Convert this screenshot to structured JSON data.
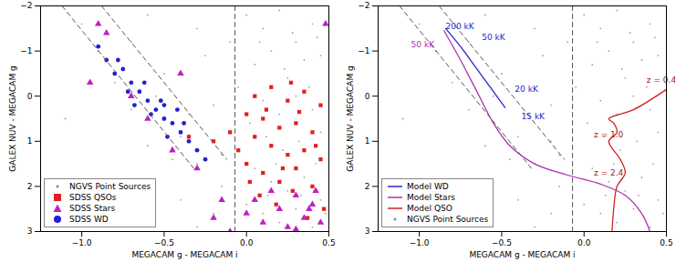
{
  "chart_data": [
    {
      "type": "scatter",
      "xlabel": "MEGACAM g - MEGACAM i",
      "ylabel": "GALEX NUV - MEGACAM g",
      "xlim": [
        -1.25,
        0.5
      ],
      "ylim": [
        3,
        -2
      ],
      "xticks": [
        {
          "value": -1.0,
          "label": "−1.0"
        },
        {
          "value": -0.5,
          "label": "−0.5"
        },
        {
          "value": 0.0,
          "label": "0.0"
        },
        {
          "value": 0.5,
          "label": "0.5"
        }
      ],
      "yticks": [
        {
          "value": -2,
          "label": "−2"
        },
        {
          "value": -1,
          "label": "−1"
        },
        0,
        1,
        2,
        3
      ],
      "grid": false,
      "legend": "lower left",
      "reference_lines": [
        {
          "x": [
            -1.12,
            -0.32
          ],
          "y": [
            -2,
            1.6
          ],
          "line_style": "dashed",
          "color": "#555555"
        },
        {
          "x": [
            -0.88,
            -0.12
          ],
          "y": [
            -2,
            1.4
          ],
          "line_style": "dashed",
          "color": "#555555"
        },
        {
          "x": [
            -0.07,
            -0.07
          ],
          "y": [
            -2,
            3
          ],
          "line_style": "dashed",
          "color": "#555555"
        }
      ],
      "series": [
        {
          "name": "NGVS Point Sources",
          "color": "#888888",
          "marker": "point",
          "x": [
            0.0,
            0.1,
            0.2,
            0.3,
            0.4,
            0.45,
            0.05,
            0.15,
            0.25,
            0.35,
            -0.05,
            0.1,
            0.2,
            0.3,
            0.4,
            0.45,
            0.02,
            0.12,
            0.22,
            0.32,
            0.42,
            0.05,
            0.15,
            0.25,
            0.35,
            0.45,
            0.0,
            0.1,
            0.2,
            0.3,
            0.4,
            0.48,
            0.08,
            0.28,
            0.38,
            0.18,
            0.33,
            0.43,
            0.13,
            0.23,
            -0.3,
            -0.6,
            -0.9,
            -0.5,
            -0.2,
            -0.7,
            -0.4,
            -0.15,
            -0.25,
            -1.0,
            -0.8,
            -0.35,
            -0.6,
            -0.2,
            -0.45,
            -0.1,
            -0.7,
            -0.3,
            -1.1,
            -0.55,
            -0.4,
            -0.2,
            -0.3,
            -0.15
          ],
          "y": [
            -1.8,
            -1.5,
            -1.9,
            -1.2,
            -1.6,
            -0.9,
            -0.7,
            -1.0,
            -0.4,
            -0.8,
            -0.2,
            0.1,
            0.4,
            0.0,
            0.3,
            0.8,
            0.6,
            0.9,
            1.2,
            1.0,
            1.5,
            1.6,
            1.9,
            2.1,
            1.8,
            2.3,
            2.4,
            2.6,
            2.8,
            2.5,
            2.9,
            2.6,
            -1.2,
            -1.4,
            -0.2,
            1.5,
            2.2,
            -1.3,
            2.2,
            -0.6,
            -1.5,
            -1.8,
            -1.0,
            -0.5,
            0.2,
            0.3,
            0.9,
            1.3,
            -0.9,
            -1.6,
            -0.3,
            0.4,
            1.1,
            1.0,
            1.4,
            -1.2,
            -1.2,
            1.5,
            0.5,
            0.0,
            2.3,
            2.6,
            2.9,
            2.0
          ]
        },
        {
          "name": "SDSS QSOs",
          "color": "#e02020",
          "marker": "square",
          "x": [
            0.05,
            0.15,
            0.25,
            0.35,
            0.45,
            0.0,
            0.1,
            0.2,
            0.3,
            0.4,
            0.05,
            0.15,
            0.25,
            0.35,
            0.45,
            0.0,
            0.1,
            0.2,
            0.3,
            0.4,
            0.08,
            0.18,
            0.28,
            -0.05,
            -0.1,
            0.12,
            0.32,
            0.22,
            0.42,
            0.02,
            -0.2,
            -0.35,
            0.27,
            0.47,
            0.37
          ],
          "y": [
            0.0,
            -0.2,
            0.1,
            -0.1,
            0.2,
            0.4,
            0.5,
            0.7,
            0.6,
            0.8,
            0.9,
            1.1,
            1.3,
            1.2,
            1.4,
            1.5,
            1.7,
            1.9,
            1.6,
            2.0,
            2.2,
            2.4,
            2.1,
            1.2,
            0.8,
            0.3,
            0.35,
            1.6,
            1.1,
            1.9,
            1.0,
            0.9,
            -0.3,
            2.5,
            2.7
          ]
        },
        {
          "name": "SDSS Stars",
          "color": "#c020c0",
          "marker": "triangle",
          "x": [
            -0.85,
            -0.95,
            -0.7,
            -0.6,
            -0.45,
            -0.3,
            -0.15,
            0.0,
            0.1,
            0.2,
            0.25,
            0.3,
            0.35,
            0.4,
            0.45,
            0.42,
            0.3,
            0.38,
            0.15,
            0.48,
            -0.2,
            -0.1,
            0.05,
            -0.4,
            -0.9
          ],
          "y": [
            -1.4,
            -0.3,
            0.0,
            0.5,
            1.2,
            1.6,
            2.3,
            2.6,
            2.8,
            2.5,
            2.9,
            2.2,
            2.7,
            2.4,
            2.8,
            2.1,
            2.95,
            2.5,
            2.1,
            -1.6,
            2.7,
            3.0,
            2.3,
            -0.5,
            -1.6
          ]
        },
        {
          "name": "SDSS WD",
          "color": "#2020d0",
          "marker": "circle",
          "x": [
            -0.85,
            -0.8,
            -0.75,
            -0.7,
            -0.65,
            -0.6,
            -0.55,
            -0.5,
            -0.45,
            -0.4,
            -0.35,
            -0.3,
            -0.72,
            -0.62,
            -0.52,
            -0.42,
            -0.78,
            -0.58,
            -0.48,
            -0.38,
            -0.9,
            -0.68,
            -0.25,
            -0.5
          ],
          "y": [
            -0.8,
            -0.5,
            -0.6,
            -0.3,
            -0.1,
            0.1,
            0.3,
            0.5,
            0.6,
            0.8,
            1.0,
            1.2,
            -0.1,
            -0.3,
            0.1,
            0.3,
            -0.8,
            0.4,
            0.9,
            0.6,
            -1.1,
            0.2,
            1.4,
            0.2
          ]
        }
      ]
    },
    {
      "type": "scatter",
      "xlabel": "MEGACAM g - MEGACAM i",
      "ylabel": "GALEX NUV - MEGACAM g",
      "xlim": [
        -1.25,
        0.5
      ],
      "ylim": [
        3,
        -2
      ],
      "xticks": [
        {
          "value": -1.0,
          "label": "−1.0"
        },
        {
          "value": -0.5,
          "label": "−0.5"
        },
        {
          "value": 0.0,
          "label": "0.0"
        },
        {
          "value": 0.5,
          "label": "0.5"
        }
      ],
      "yticks": [
        {
          "value": -2,
          "label": "−2"
        },
        {
          "value": -1,
          "label": "−1"
        },
        0,
        1,
        2,
        3
      ],
      "grid": false,
      "legend": "lower left",
      "reference_lines": [
        {
          "x": [
            -1.12,
            -0.32
          ],
          "y": [
            -2,
            1.6
          ],
          "line_style": "dashed",
          "color": "#555555"
        },
        {
          "x": [
            -0.88,
            -0.12
          ],
          "y": [
            -2,
            1.4
          ],
          "line_style": "dashed",
          "color": "#555555"
        },
        {
          "x": [
            -0.07,
            -0.07
          ],
          "y": [
            -2,
            3
          ],
          "line_style": "dashed",
          "color": "#555555"
        }
      ],
      "series": [
        {
          "name": "Model WD",
          "type": "line",
          "color": "#2828c8",
          "line_style": "solid",
          "x": [
            -0.84,
            -0.75,
            -0.65,
            -0.55,
            -0.48
          ],
          "y": [
            -1.5,
            -1.1,
            -0.6,
            -0.1,
            0.25
          ]
        },
        {
          "name": "Model Stars",
          "type": "line",
          "color": "#b030b0",
          "line_style": "solid",
          "x": [
            -0.85,
            -0.75,
            -0.65,
            -0.55,
            -0.45,
            -0.3,
            -0.1,
            0.1,
            0.25,
            0.35,
            0.4
          ],
          "y": [
            -1.45,
            -0.8,
            -0.1,
            0.6,
            1.1,
            1.5,
            1.75,
            1.95,
            2.2,
            2.6,
            3.0
          ]
        },
        {
          "name": "Model QSO",
          "type": "line",
          "color": "#d02020",
          "line_style": "solid",
          "x": [
            0.5,
            0.3,
            0.15,
            0.18,
            0.2,
            0.15,
            0.22,
            0.25,
            0.2,
            0.18,
            0.17
          ],
          "y": [
            -0.15,
            0.3,
            0.5,
            0.6,
            0.8,
            1.0,
            1.4,
            1.7,
            2.0,
            2.5,
            3.0
          ]
        },
        {
          "name": "NGVS Point Sources",
          "color": "#888888",
          "marker": "point",
          "x": [
            0.0,
            0.1,
            0.2,
            0.3,
            0.4,
            0.45,
            0.05,
            0.15,
            0.25,
            0.35,
            -0.05,
            0.1,
            0.2,
            0.3,
            0.4,
            0.45,
            0.02,
            0.12,
            0.22,
            0.32,
            0.42,
            0.05,
            0.15,
            0.25,
            0.35,
            0.45,
            0.0,
            0.1,
            0.2,
            0.3,
            0.4,
            0.48,
            0.08,
            0.28,
            0.38,
            0.18,
            0.33,
            0.43,
            0.13,
            0.23,
            -0.3,
            -0.6,
            -0.9,
            -0.5,
            -0.2,
            -0.7,
            -0.4,
            -0.15,
            -0.25,
            -1.0,
            -0.8,
            -0.35,
            -0.6,
            -0.2,
            -0.45,
            -0.1,
            -0.7,
            -0.3,
            -1.1,
            -0.55,
            -0.4,
            -0.2,
            -0.3,
            -0.15
          ],
          "y": [
            -1.8,
            -1.5,
            -1.9,
            -1.2,
            -1.6,
            -0.9,
            -0.7,
            -1.0,
            -0.4,
            -0.8,
            -0.2,
            0.1,
            0.4,
            0.0,
            0.3,
            0.8,
            0.6,
            0.9,
            1.2,
            1.0,
            1.5,
            1.6,
            1.9,
            2.1,
            1.8,
            2.3,
            2.4,
            2.6,
            2.8,
            2.5,
            2.9,
            2.6,
            -1.2,
            -1.4,
            -0.2,
            1.5,
            2.2,
            -1.3,
            2.2,
            -0.6,
            -1.5,
            -1.8,
            -1.0,
            -0.5,
            0.2,
            0.3,
            0.9,
            1.3,
            -0.9,
            -1.6,
            -0.3,
            0.4,
            1.1,
            1.0,
            1.4,
            -1.2,
            -1.2,
            1.5,
            0.5,
            0.0,
            2.3,
            2.6,
            2.9,
            2.0
          ]
        }
      ],
      "annotations": [
        {
          "text": "200 kK",
          "x": -0.84,
          "y": -1.55,
          "color": "#2828c8"
        },
        {
          "text": "50 kK",
          "x": -0.62,
          "y": -1.3,
          "color": "#2828c8"
        },
        {
          "text": "20 kK",
          "x": -0.42,
          "y": -0.15,
          "color": "#2828c8"
        },
        {
          "text": "15 kK",
          "x": -0.38,
          "y": 0.45,
          "color": "#2828c8"
        },
        {
          "text": "50 kK",
          "x": -1.05,
          "y": -1.15,
          "color": "#b030b0"
        },
        {
          "text": "z = 0.4",
          "x": 0.38,
          "y": -0.35,
          "color": "#a01818"
        },
        {
          "text": "z = 1.0",
          "x": 0.06,
          "y": 0.85,
          "color": "#a01818"
        },
        {
          "text": "z = 2.4",
          "x": 0.06,
          "y": 1.7,
          "color": "#a01818"
        }
      ]
    }
  ]
}
